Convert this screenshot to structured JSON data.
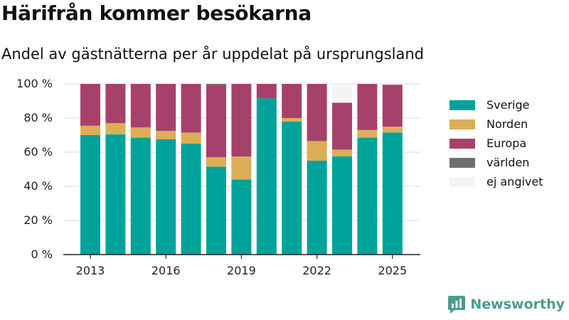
{
  "header": {
    "title": "Härifrån kommer besökarna",
    "subtitle": "Andel av gästnätterna per år uppdelat på ursprungsland"
  },
  "brand": {
    "name": "Newsworthy",
    "icon": "newsworthy-logo-icon"
  },
  "colors": {
    "Sverige": "#00a39a",
    "Norden": "#dcae57",
    "Europa": "#a6416b",
    "världen": "#6f6f73",
    "ej angivet": "#f4f4f4"
  },
  "chart_data": {
    "type": "bar",
    "stacked": true,
    "categories": [
      2013,
      2014,
      2015,
      2016,
      2017,
      2018,
      2019,
      2020,
      2021,
      2022,
      2023,
      2024,
      2025
    ],
    "x_tick_labels": [
      "2013",
      "2016",
      "2019",
      "2022",
      "2025"
    ],
    "y_tick_labels": [
      "0 %",
      "20 %",
      "40 %",
      "60 %",
      "80 %",
      "100 %"
    ],
    "ylim": [
      0,
      100
    ],
    "legend_position": "right",
    "series": [
      {
        "name": "Sverige",
        "values": [
          70,
          70.5,
          68.5,
          67.5,
          65,
          51.5,
          44,
          91.5,
          78,
          55,
          57.5,
          68.5,
          71.5
        ]
      },
      {
        "name": "Norden",
        "values": [
          5.5,
          6.5,
          6,
          5,
          6.5,
          5.5,
          13.5,
          0,
          2,
          11.5,
          4,
          4.5,
          3.5
        ]
      },
      {
        "name": "Europa",
        "values": [
          24.5,
          23,
          25.5,
          27.5,
          28.5,
          42.5,
          42.5,
          8.5,
          20,
          33.5,
          27.5,
          27,
          24.5
        ]
      },
      {
        "name": "världen",
        "values": [
          0,
          0,
          0,
          0,
          0,
          0.5,
          0,
          0,
          0,
          0,
          0,
          0,
          0
        ]
      },
      {
        "name": "ej angivet",
        "values": [
          0,
          0,
          0,
          0,
          0,
          0,
          0,
          0,
          0,
          0,
          11,
          0,
          0
        ]
      }
    ]
  }
}
